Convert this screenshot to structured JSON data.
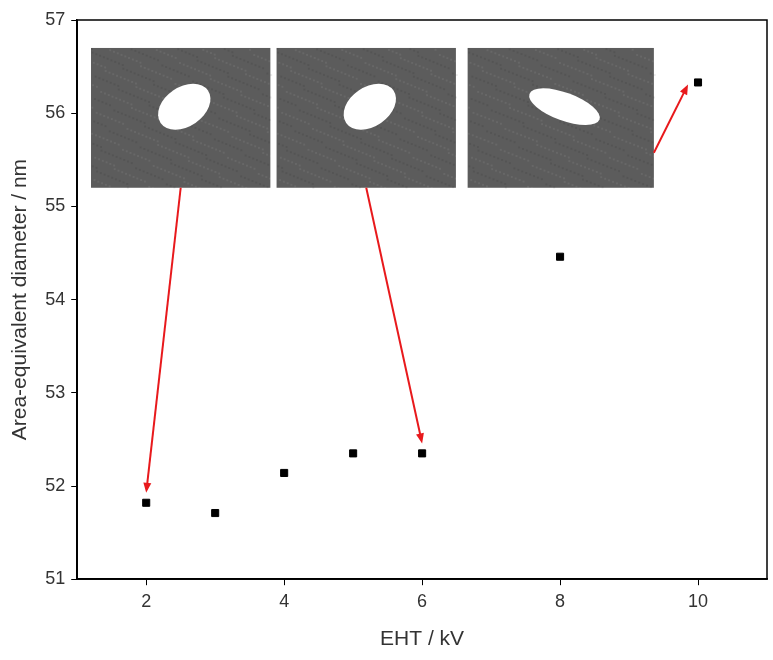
{
  "chart_data": {
    "type": "scatter",
    "x_label": "EHT / kV",
    "y_label": "Area-equivalent diameter / nm",
    "x": [
      2,
      3,
      4,
      5,
      6,
      8,
      10
    ],
    "values": [
      51.82,
      51.71,
      52.14,
      52.35,
      52.35,
      54.46,
      56.33
    ],
    "color": "#000000",
    "marker": "square",
    "xlim": [
      1,
      11
    ],
    "xticks": [
      2,
      4,
      6,
      8,
      10
    ],
    "ylim": [
      51,
      57
    ],
    "yticks": [
      51,
      52,
      53,
      54,
      55,
      56,
      57
    ],
    "grid": false
  }
}
